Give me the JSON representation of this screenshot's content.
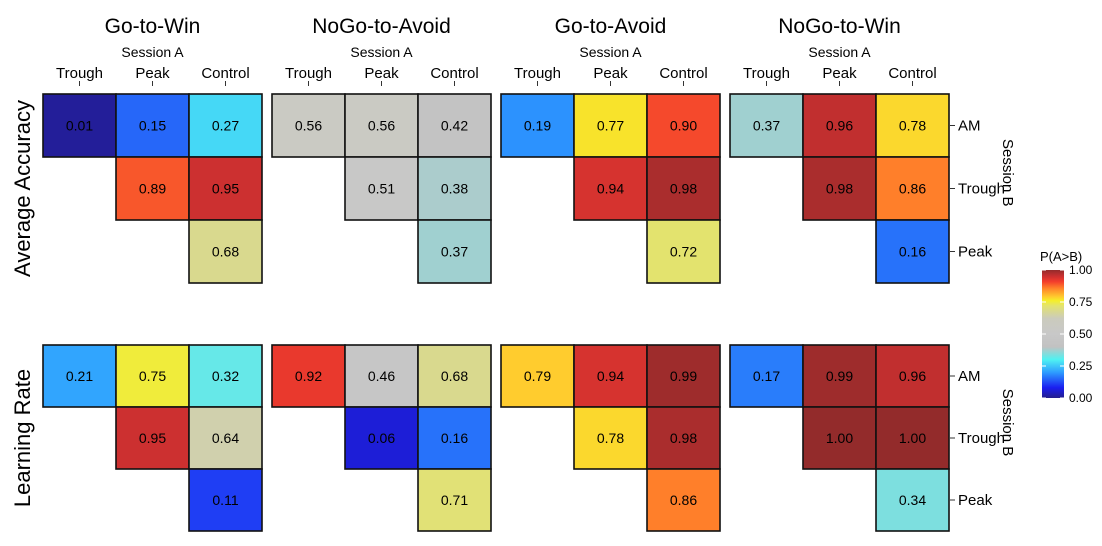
{
  "chart_data": {
    "type": "heatmap",
    "color_scale": {
      "title": "P(A>B)",
      "ticks": [
        "1.00",
        "0.75",
        "0.50",
        "0.25",
        "0.00"
      ],
      "stops": [
        {
          "value": 0.0,
          "color": "#241e8c"
        },
        {
          "value": 0.08,
          "color": "#1a1ef0"
        },
        {
          "value": 0.2,
          "color": "#2e9cff"
        },
        {
          "value": 0.3,
          "color": "#4ff2f2"
        },
        {
          "value": 0.4,
          "color": "#c2c2c2"
        },
        {
          "value": 0.5,
          "color": "#c8c8c8"
        },
        {
          "value": 0.62,
          "color": "#cbcbbd"
        },
        {
          "value": 0.72,
          "color": "#e3e36e"
        },
        {
          "value": 0.76,
          "color": "#f4ef2a"
        },
        {
          "value": 0.79,
          "color": "#ffcc2e"
        },
        {
          "value": 0.86,
          "color": "#ff7f2a"
        },
        {
          "value": 0.91,
          "color": "#f33c2c"
        },
        {
          "value": 0.95,
          "color": "#cc3030"
        },
        {
          "value": 1.0,
          "color": "#932b2b"
        }
      ]
    },
    "session_a_label": "Session A",
    "session_b_label": "Session B",
    "columns": [
      "Trough",
      "Peak",
      "Control"
    ],
    "rows": [
      "AM",
      "Trough",
      "Peak"
    ],
    "panel_titles": [
      "Go-to-Win",
      "NoGo-to-Avoid",
      "Go-to-Avoid",
      "NoGo-to-Win"
    ],
    "metrics": [
      {
        "label": "Average Accuracy",
        "panels": [
          {
            "title": "Go-to-Win",
            "values": [
              [
                "0.01",
                "0.15",
                "0.27"
              ],
              [
                null,
                "0.89",
                "0.95"
              ],
              [
                null,
                null,
                "0.68"
              ]
            ]
          },
          {
            "title": "NoGo-to-Avoid",
            "values": [
              [
                "0.56",
                "0.56",
                "0.42"
              ],
              [
                null,
                "0.51",
                "0.38"
              ],
              [
                null,
                null,
                "0.37"
              ]
            ]
          },
          {
            "title": "Go-to-Avoid",
            "values": [
              [
                "0.19",
                "0.77",
                "0.90"
              ],
              [
                null,
                "0.94",
                "0.98"
              ],
              [
                null,
                null,
                "0.72"
              ]
            ]
          },
          {
            "title": "NoGo-to-Win",
            "values": [
              [
                "0.37",
                "0.96",
                "0.78"
              ],
              [
                null,
                "0.98",
                "0.86"
              ],
              [
                null,
                null,
                "0.16"
              ]
            ]
          }
        ]
      },
      {
        "label": "Learning Rate",
        "panels": [
          {
            "title": "Go-to-Win",
            "values": [
              [
                "0.21",
                "0.75",
                "0.32"
              ],
              [
                null,
                "0.95",
                "0.64"
              ],
              [
                null,
                null,
                "0.11"
              ]
            ]
          },
          {
            "title": "NoGo-to-Avoid",
            "values": [
              [
                "0.92",
                "0.46",
                "0.68"
              ],
              [
                null,
                "0.06",
                "0.16"
              ],
              [
                null,
                null,
                "0.71"
              ]
            ]
          },
          {
            "title": "Go-to-Avoid",
            "values": [
              [
                "0.79",
                "0.94",
                "0.99"
              ],
              [
                null,
                "0.78",
                "0.98"
              ],
              [
                null,
                null,
                "0.86"
              ]
            ]
          },
          {
            "title": "NoGo-to-Win",
            "values": [
              [
                "0.17",
                "0.99",
                "0.96"
              ],
              [
                null,
                "1.00",
                "1.00"
              ],
              [
                null,
                null,
                "0.34"
              ]
            ]
          }
        ]
      }
    ]
  }
}
